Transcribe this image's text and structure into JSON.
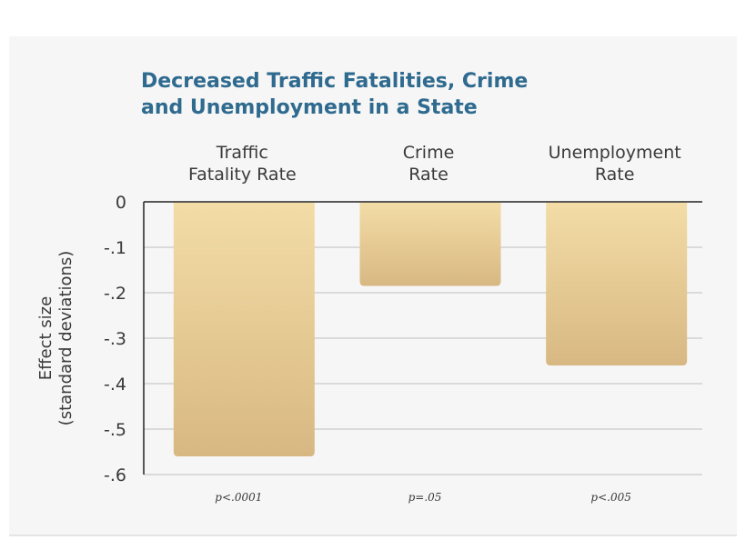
{
  "chart_data": {
    "type": "bar",
    "title": [
      "Decreased Traffic Fatalities, Crime",
      "and Unemployment in a State"
    ],
    "categories": [
      [
        "Traffic",
        "Fatality Rate"
      ],
      [
        "Crime",
        "Rate"
      ],
      [
        "Unemployment",
        "Rate"
      ]
    ],
    "values": [
      -0.56,
      -0.185,
      -0.36
    ],
    "p_values": [
      "p<.0001",
      "p=.05",
      "p<.005"
    ],
    "ylabel": [
      "Effect size",
      "(standard deviations)"
    ],
    "ylim": [
      -0.6,
      0
    ],
    "yticks": [
      0,
      -0.1,
      -0.2,
      -0.3,
      -0.4,
      -0.5,
      -0.6
    ],
    "ytick_labels": [
      "0",
      "-.1",
      "-.2",
      "-.3",
      "-.4",
      "-.5",
      "-.6"
    ],
    "grid": true,
    "colors": {
      "bar_top": "#f3dca6",
      "bar_bottom": "#d8b882",
      "title": "#2f6a8f",
      "grid": "#bdbdbd",
      "axis": "#222222"
    }
  }
}
